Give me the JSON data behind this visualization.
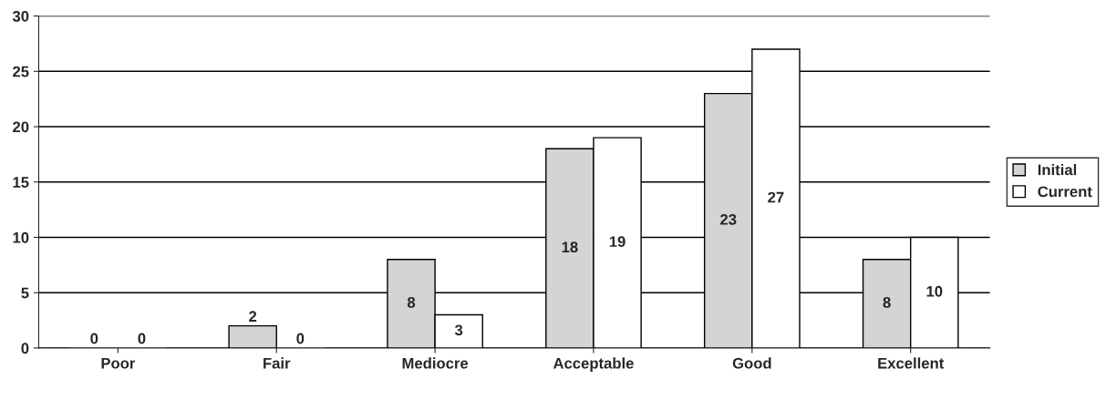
{
  "chart_data": {
    "type": "bar",
    "categories": [
      "Poor",
      "Fair",
      "Mediocre",
      "Acceptable",
      "Good",
      "Excellent"
    ],
    "series": [
      {
        "name": "Initial",
        "color": "#d4d4d4",
        "values": [
          0,
          2,
          8,
          18,
          23,
          8
        ]
      },
      {
        "name": "Current",
        "color": "#ffffff",
        "values": [
          0,
          0,
          3,
          19,
          27,
          10
        ]
      }
    ],
    "ylim": [
      0,
      30
    ],
    "yticks": [
      0,
      5,
      10,
      15,
      20,
      25,
      30
    ],
    "grid": "y",
    "legend": "right",
    "data_labels": true
  }
}
